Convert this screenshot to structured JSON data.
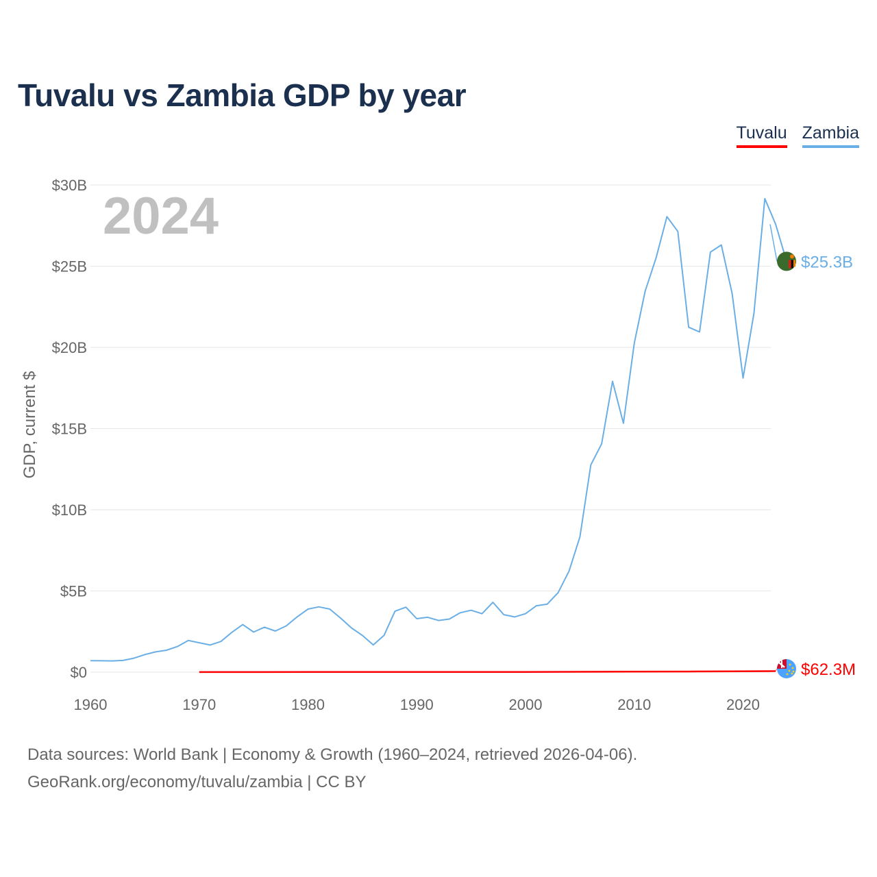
{
  "title": "Tuvalu vs Zambia GDP by year",
  "legend": {
    "tuvalu": "Tuvalu",
    "zambia": "Zambia"
  },
  "year_label": "2024",
  "source": {
    "line1": "Data sources: World Bank | Economy & Growth (1960–2024, retrieved 2026-04-06).",
    "line2": "GeoRank.org/economy/tuvalu/zambia | CC BY"
  },
  "colors": {
    "tuvalu": "#ff0000",
    "zambia": "#6aaee6",
    "grid": "#e6e6e6",
    "text": "#666666",
    "title": "#1b2f4e"
  },
  "chart_data": {
    "type": "line",
    "title": "Tuvalu vs Zambia GDP by year",
    "xlabel": "",
    "ylabel": "GDP, current $",
    "xlim": [
      1960,
      2024
    ],
    "ylim": [
      0,
      30
    ],
    "y_unit": "billions USD",
    "x_ticks": [
      1960,
      1970,
      1980,
      1990,
      2000,
      2010,
      2020
    ],
    "y_ticks": [
      {
        "value": 0,
        "label": "$0"
      },
      {
        "value": 5,
        "label": "$5B"
      },
      {
        "value": 10,
        "label": "$10B"
      },
      {
        "value": 15,
        "label": "$15B"
      },
      {
        "value": 20,
        "label": "$20B"
      },
      {
        "value": 25,
        "label": "$25B"
      },
      {
        "value": 30,
        "label": "$30B"
      }
    ],
    "legend_position": "top-right",
    "grid": true,
    "series": [
      {
        "name": "Zambia",
        "color": "#6aaee6",
        "end_label": "$25.3B",
        "end_value": 25.3,
        "x": [
          1960,
          1961,
          1962,
          1963,
          1964,
          1965,
          1966,
          1967,
          1968,
          1969,
          1970,
          1971,
          1972,
          1973,
          1974,
          1975,
          1976,
          1977,
          1978,
          1979,
          1980,
          1981,
          1982,
          1983,
          1984,
          1985,
          1986,
          1987,
          1988,
          1989,
          1990,
          1991,
          1992,
          1993,
          1994,
          1995,
          1996,
          1997,
          1998,
          1999,
          2000,
          2001,
          2002,
          2003,
          2004,
          2005,
          2006,
          2007,
          2008,
          2009,
          2010,
          2011,
          2012,
          2013,
          2014,
          2015,
          2016,
          2017,
          2018,
          2019,
          2020,
          2021,
          2022,
          2023,
          2024
        ],
        "values": [
          0.71,
          0.7,
          0.69,
          0.72,
          0.86,
          1.08,
          1.25,
          1.35,
          1.58,
          1.95,
          1.81,
          1.67,
          1.89,
          2.45,
          2.93,
          2.47,
          2.77,
          2.53,
          2.85,
          3.4,
          3.88,
          4.02,
          3.88,
          3.33,
          2.72,
          2.26,
          1.68,
          2.27,
          3.75,
          4.0,
          3.29,
          3.38,
          3.18,
          3.27,
          3.66,
          3.81,
          3.6,
          4.3,
          3.54,
          3.4,
          3.6,
          4.09,
          4.19,
          4.9,
          6.22,
          8.33,
          12.76,
          14.06,
          17.91,
          15.33,
          20.27,
          23.46,
          25.5,
          28.05,
          27.14,
          21.24,
          20.95,
          25.87,
          26.31,
          23.31,
          18.11,
          22.1,
          29.16,
          27.58,
          25.31
        ]
      },
      {
        "name": "Tuvalu",
        "color": "#ff0000",
        "end_label": "$62.3M",
        "end_value": 0.0623,
        "x": [
          1970,
          1975,
          1980,
          1985,
          1990,
          1995,
          2000,
          2005,
          2010,
          2015,
          2020,
          2023
        ],
        "values": [
          0.005,
          0.006,
          0.007,
          0.008,
          0.009,
          0.01,
          0.014,
          0.022,
          0.032,
          0.037,
          0.055,
          0.062
        ]
      }
    ]
  }
}
